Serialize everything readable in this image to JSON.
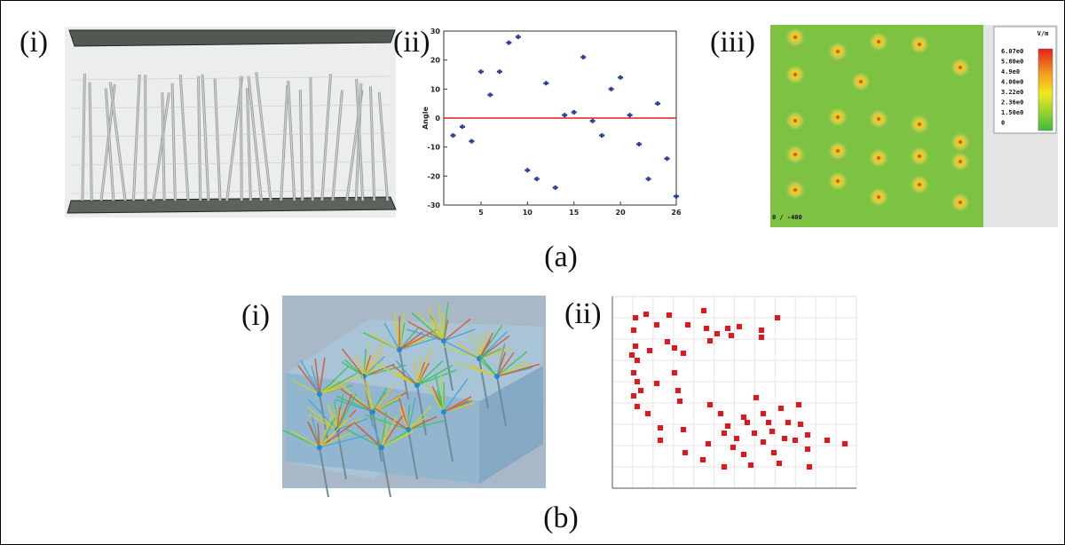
{
  "panels": {
    "a": {
      "label": "(a)",
      "i": {
        "label": "(i)"
      },
      "ii": {
        "label": "(ii)"
      },
      "iii": {
        "label": "(iii)",
        "colorbar": {
          "title": "V/m",
          "labels": [
            "6.07e0",
            "5.80e0",
            "4.9e0",
            "4.00e0",
            "3.22e0",
            "2.36e0",
            "1.50e0",
            "0"
          ]
        },
        "footer": "0 / -400"
      }
    },
    "b": {
      "label": "(b)",
      "i": {
        "label": "(i)"
      },
      "ii": {
        "label": "(ii)"
      }
    }
  },
  "chart_data": [
    {
      "type": "scatter",
      "y_label": "Angle",
      "x": [
        2,
        3,
        4,
        5,
        6,
        7,
        8,
        9,
        10,
        11,
        12,
        13,
        14,
        15,
        16,
        17,
        18,
        19,
        20,
        21,
        22,
        23,
        24,
        25,
        26
      ],
      "series": [
        {
          "color": "#2b3f9e",
          "values": [
            -6,
            -3,
            -8,
            16,
            8,
            16,
            26,
            28,
            -18,
            -21,
            12,
            -24,
            1,
            2,
            21,
            -1,
            -6,
            10,
            14,
            1,
            -9,
            -21,
            5,
            -14,
            -27
          ]
        }
      ],
      "reference_line": {
        "value": 0,
        "color": "#e02020"
      },
      "xlim": [
        1,
        26
      ],
      "ylim": [
        -30,
        30
      ],
      "xticks": [
        5,
        10,
        15,
        20,
        26
      ],
      "yticks": [
        -30,
        -20,
        -10,
        0,
        10,
        20,
        30
      ]
    },
    {
      "type": "scatter",
      "marker": "square",
      "x": [
        26,
        38,
        64,
        103,
        186,
        24,
        50,
        62,
        85,
        106,
        118,
        130,
        143,
        168,
        168,
        26,
        22,
        28,
        42,
        70,
        80,
        110,
        134,
        24,
        28,
        70,
        32,
        24,
        50,
        74,
        28,
        40,
        76,
        162,
        54,
        80,
        110,
        122,
        148,
        170,
        190,
        210,
        54,
        130,
        152,
        176,
        198,
        212,
        126,
        140,
        160,
        180,
        194,
        220,
        108,
        136,
        170,
        206,
        242,
        262,
        82,
        148,
        182,
        220,
        102,
        126,
        156,
        188,
        222
      ],
      "series": [
        {
          "color": "#e8141c",
          "values": [
            192,
            196,
            195,
            200,
            192,
            178,
            184,
            165,
            184,
            180,
            174,
            180,
            182,
            178,
            170,
            160,
            150,
            144,
            155,
            158,
            152,
            166,
            172,
            130,
            120,
            130,
            110,
            104,
            118,
            110,
            92,
            84,
            98,
            102,
            68,
            66,
            94,
            84,
            80,
            84,
            90,
            94,
            54,
            70,
            74,
            74,
            74,
            72,
            62,
            56,
            62,
            64,
            56,
            60,
            50,
            46,
            52,
            54,
            54,
            50,
            40,
            38,
            40,
            44,
            32,
            24,
            26,
            28,
            24
          ]
        }
      ],
      "xlim": [
        0,
        275
      ],
      "ylim": [
        0,
        216
      ],
      "grid": true
    }
  ]
}
